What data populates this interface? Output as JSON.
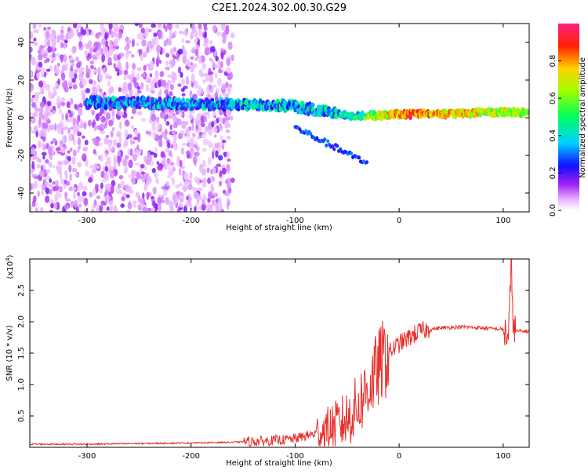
{
  "title": "C2E1.2024.302.00.30.G29",
  "colors": {
    "snr_line": "#e8302c",
    "axis": "#000000",
    "background": "#ffffff"
  },
  "chart_data": [
    {
      "type": "heatmap",
      "xlabel": "Height of straight line (km)",
      "ylabel": "Frequency (Hz)",
      "xlim": [
        -355,
        125
      ],
      "ylim": [
        -50,
        50
      ],
      "xticks": [
        -300,
        -200,
        -100,
        0,
        100
      ],
      "yticks": [
        -40,
        -20,
        0,
        20,
        40
      ],
      "colorbar": {
        "label": "Normalized spectral amplitude",
        "range": [
          0,
          1
        ],
        "ticks": [
          0.0,
          0.2,
          0.4,
          0.6,
          0.8
        ],
        "tick_labels": [
          "0.0",
          "0.2",
          "0.4",
          "0.6",
          "0.8"
        ],
        "colormap": "rainbow (white-magenta-blue-cyan-green-yellow-red-pink)"
      },
      "signal_ridge": {
        "x": [
          -300,
          -250,
          -200,
          -150,
          -120,
          -100,
          -80,
          -60,
          -40,
          -20,
          0,
          20,
          50,
          80,
          100,
          125
        ],
        "frequency": [
          8,
          8,
          7,
          7,
          7,
          6,
          4,
          2,
          1,
          1,
          2,
          2,
          2,
          3,
          3,
          3
        ],
        "amplitude": [
          0.45,
          0.45,
          0.45,
          0.5,
          0.5,
          0.5,
          0.5,
          0.55,
          0.6,
          0.8,
          0.95,
          0.95,
          0.9,
          0.8,
          0.8,
          0.8
        ]
      },
      "noise_region_x": [
        -355,
        -160
      ]
    },
    {
      "type": "line",
      "xlabel": "Height of straight line (km)",
      "ylabel": "SNR (10 * v/v)",
      "yscale_label": "(x10",
      "yscale_exp": "4",
      "yscale_close": ")",
      "xlim": [
        -355,
        125
      ],
      "ylim": [
        0,
        3.0
      ],
      "xticks": [
        -300,
        -200,
        -100,
        0,
        100
      ],
      "yticks": [
        0.5,
        1.0,
        1.5,
        2.0,
        2.5
      ],
      "ytick_labels": [
        "0.5",
        "1.0",
        "1.5",
        "2.0",
        "2.5"
      ],
      "series": [
        {
          "x": [
            -355,
            -300,
            -250,
            -200,
            -160,
            -130,
            -110,
            -100,
            -90,
            -80,
            -70,
            -60,
            -50,
            -40,
            -30,
            -20,
            -15,
            -10,
            0,
            10,
            20,
            30,
            40,
            60,
            80,
            100,
            105,
            108,
            110,
            125
          ],
          "values": [
            0.05,
            0.05,
            0.06,
            0.07,
            0.08,
            0.1,
            0.12,
            0.14,
            0.18,
            0.22,
            0.28,
            0.35,
            0.45,
            0.65,
            0.95,
            1.25,
            1.4,
            1.5,
            1.65,
            1.75,
            1.85,
            1.88,
            1.9,
            1.92,
            1.9,
            1.88,
            1.75,
            2.9,
            1.85,
            1.85
          ]
        }
      ],
      "grid": false
    }
  ]
}
